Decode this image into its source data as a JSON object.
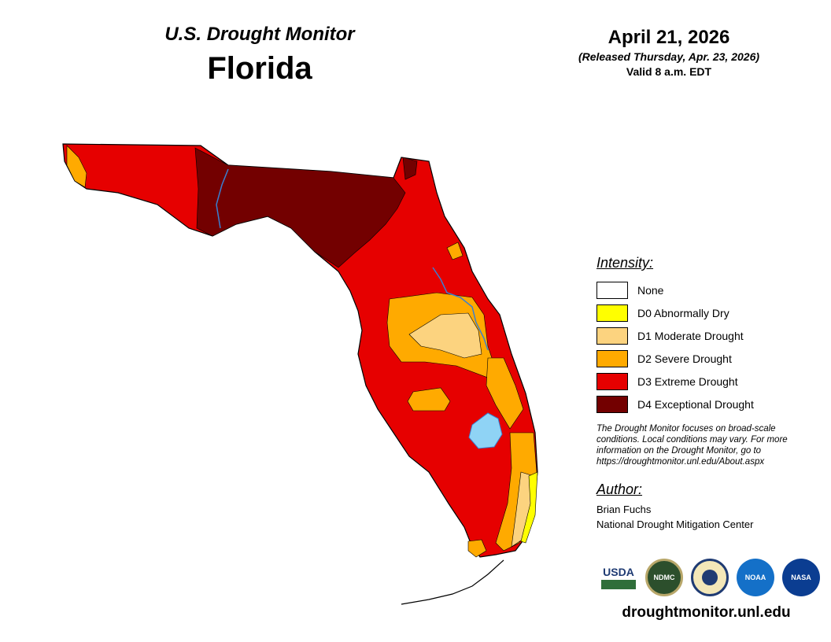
{
  "header": {
    "subtitle": "U.S. Drought Monitor",
    "state": "Florida",
    "map_date": "April 21, 2026",
    "released": "(Released Thursday, Apr. 23, 2026)",
    "valid": "Valid 8 a.m. EDT"
  },
  "legend": {
    "title": "Intensity:",
    "items": [
      {
        "label": "None",
        "color": "#ffffff"
      },
      {
        "label": "D0 Abnormally Dry",
        "color": "#ffff00"
      },
      {
        "label": "D1 Moderate Drought",
        "color": "#fcd37f"
      },
      {
        "label": "D2 Severe Drought",
        "color": "#ffaa00"
      },
      {
        "label": "D3 Extreme Drought",
        "color": "#e60000"
      },
      {
        "label": "D4 Exceptional Drought",
        "color": "#730000"
      }
    ]
  },
  "disclaimer": "The Drought Monitor focuses on broad-scale conditions. Local conditions may vary. For more information on the Drought Monitor, go to https://droughtmonitor.unl.edu/About.aspx",
  "author": {
    "title": "Author:",
    "name": "Brian Fuchs",
    "organization": "National Drought Mitigation Center"
  },
  "logos": [
    {
      "name": "USDA",
      "label": "USDA"
    },
    {
      "name": "NDMC",
      "label": "NDMC"
    },
    {
      "name": "Department of Commerce",
      "label": ""
    },
    {
      "name": "NOAA",
      "label": "NOAA"
    },
    {
      "name": "NASA",
      "label": "NASA"
    }
  ],
  "footer_url": "droughtmonitor.unl.edu",
  "water_color": "#8fd3f5"
}
